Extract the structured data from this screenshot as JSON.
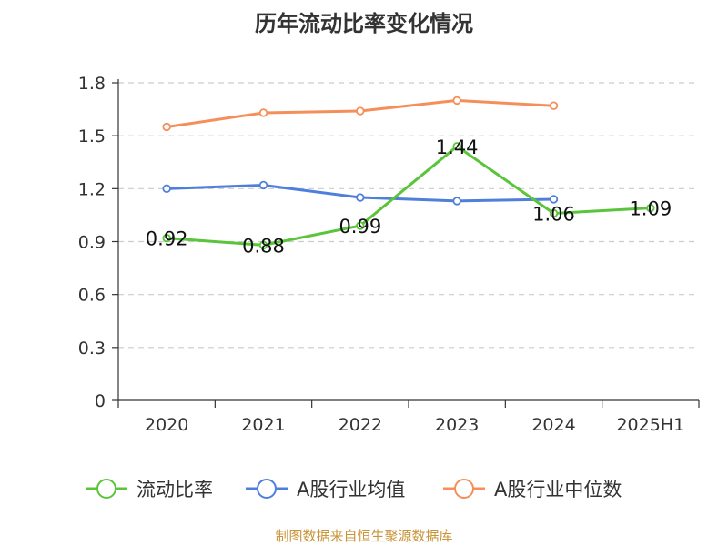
{
  "chart_data": {
    "type": "line",
    "title": "历年流动比率变化情况",
    "categories": [
      "2020",
      "2021",
      "2022",
      "2023",
      "2024",
      "2025H1"
    ],
    "ylim": [
      0,
      1.8
    ],
    "yticks": [
      "0",
      "0.3",
      "0.6",
      "0.9",
      "1.2",
      "1.5",
      "1.8"
    ],
    "grid": true,
    "legend_position": "bottom",
    "series": [
      {
        "name": "流动比率",
        "color": "#5ac43a",
        "values": [
          0.92,
          0.88,
          0.99,
          1.44,
          1.06,
          1.09
        ],
        "labels": [
          "0.92",
          "0.88",
          "0.99",
          "1.44",
          "1.06",
          "1.09"
        ]
      },
      {
        "name": "A股行业均值",
        "color": "#4f7fdc",
        "values": [
          1.2,
          1.22,
          1.15,
          1.13,
          1.14,
          null
        ]
      },
      {
        "name": "A股行业中位数",
        "color": "#f58f5a",
        "values": [
          1.55,
          1.63,
          1.64,
          1.7,
          1.67,
          null
        ]
      }
    ]
  },
  "source": "制图数据来自恒生聚源数据库"
}
